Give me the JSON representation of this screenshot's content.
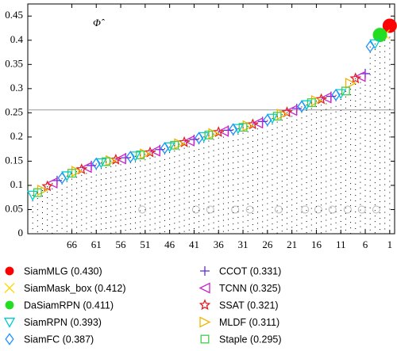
{
  "chart_data": {
    "type": "ranking",
    "annotation": "Φ̂",
    "xlim": [
      75,
      0
    ],
    "xticks": [
      66,
      61,
      56,
      51,
      46,
      41,
      36,
      31,
      26,
      21,
      16,
      11,
      6,
      1
    ],
    "ylim": [
      0,
      0.475
    ],
    "yticks": [
      0,
      0.05,
      0.1,
      0.15,
      0.2,
      0.25,
      0.3,
      0.35,
      0.4,
      0.45
    ],
    "reference_line": 0.256,
    "series": [
      {
        "name": "SiamMLG (0.430)",
        "color": "#ff0000",
        "marker": "circle-filled",
        "x": 1,
        "values": 0.43
      },
      {
        "name": "SiamMask_box (0.412)",
        "color": "#ffd700",
        "marker": "x",
        "x": 2,
        "values": 0.412
      },
      {
        "name": "DaSiamRPN (0.411)",
        "color": "#22dd22",
        "marker": "circle-filled",
        "x": 3,
        "values": 0.411
      },
      {
        "name": "SiamRPN (0.393)",
        "color": "#00cccc",
        "marker": "triangle-down",
        "x": 4,
        "values": 0.393
      },
      {
        "name": "SiamFC (0.387)",
        "color": "#1e90ff",
        "marker": "diamond",
        "x": 5,
        "values": 0.387
      },
      {
        "name": "CCOT (0.331)",
        "color": "#5a2dd8",
        "marker": "plus",
        "x": 6,
        "values": 0.331
      },
      {
        "name": "TCNN (0.325)",
        "color": "#cc22cc",
        "marker": "triangle-left",
        "x": 7,
        "values": 0.325
      },
      {
        "name": "SSAT (0.321)",
        "color": "#dd2222",
        "marker": "star",
        "x": 8,
        "values": 0.321
      },
      {
        "name": "MLDF (0.311)",
        "color": "#f0b400",
        "marker": "triangle-right",
        "x": 9,
        "values": 0.311
      },
      {
        "name": "Staple (0.295)",
        "color": "#44cc44",
        "marker": "square",
        "x": 10,
        "values": 0.295
      }
    ],
    "other_points": {
      "x": [
        11,
        12,
        13,
        14,
        15,
        16,
        17,
        18,
        19,
        20,
        21,
        22,
        23,
        24,
        25,
        26,
        27,
        28,
        29,
        30,
        31,
        32,
        33,
        34,
        35,
        36,
        37,
        38,
        39,
        40,
        41,
        42,
        43,
        44,
        45,
        46,
        47,
        48,
        49,
        50,
        51,
        52,
        53,
        54,
        55,
        56,
        57,
        58,
        59,
        60,
        61,
        62,
        63,
        64,
        65,
        66,
        67,
        68,
        69,
        70,
        71,
        72,
        73,
        74
      ],
      "values": [
        0.29,
        0.287,
        0.284,
        0.281,
        0.278,
        0.275,
        0.271,
        0.267,
        0.263,
        0.259,
        0.255,
        0.251,
        0.247,
        0.243,
        0.239,
        0.235,
        0.232,
        0.229,
        0.226,
        0.223,
        0.22,
        0.218,
        0.216,
        0.214,
        0.212,
        0.21,
        0.207,
        0.204,
        0.201,
        0.198,
        0.195,
        0.192,
        0.189,
        0.186,
        0.183,
        0.18,
        0.177,
        0.174,
        0.171,
        0.168,
        0.165,
        0.163,
        0.161,
        0.159,
        0.157,
        0.155,
        0.153,
        0.151,
        0.149,
        0.147,
        0.145,
        0.141,
        0.137,
        0.133,
        0.129,
        0.125,
        0.12,
        0.115,
        0.11,
        0.105,
        0.098,
        0.09,
        0.085,
        0.08
      ]
    },
    "baseline_marks": {
      "x": [
        51.6,
        40.6,
        37.7,
        32.6,
        29.6,
        23.7,
        18.3,
        15.6,
        12.7,
        9.6,
        6.7,
        3.75
      ],
      "values": [
        0.05,
        0.05,
        0.05,
        0.05,
        0.05,
        0.05,
        0.05,
        0.05,
        0.05,
        0.05,
        0.05,
        0.05
      ],
      "color": "#bbbbbb"
    }
  }
}
